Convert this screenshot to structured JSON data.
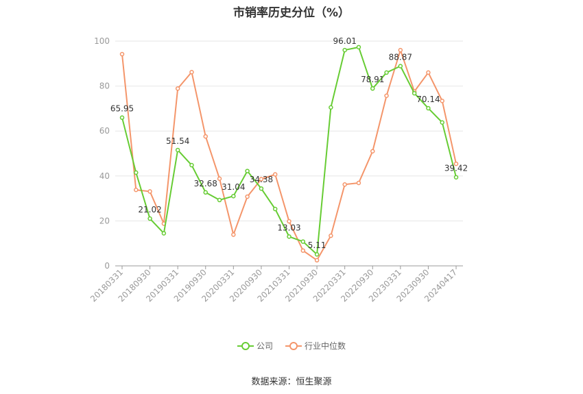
{
  "chart_data": {
    "type": "line",
    "title": "市销率历史分位（%）",
    "ylim": [
      0,
      100
    ],
    "yticks": [
      0,
      20,
      40,
      60,
      80,
      100
    ],
    "grid": true,
    "legend_position": "bottom-center",
    "x_tick_labels": [
      "20180331",
      "20180930",
      "20190331",
      "20190930",
      "20200331",
      "20200930",
      "20210331",
      "20210930",
      "20220331",
      "20220930",
      "20230331",
      "20230930",
      "20240417"
    ],
    "x": [
      "20180331",
      "20180630",
      "20180930",
      "20181231",
      "20190331",
      "20190630",
      "20190930",
      "20191231",
      "20200331",
      "20200630",
      "20200930",
      "20201231",
      "20210331",
      "20210630",
      "20210930",
      "20211231",
      "20220331",
      "20220630",
      "20220930",
      "20221231",
      "20230331",
      "20230630",
      "20230930",
      "20231231",
      "20240417"
    ],
    "series": [
      {
        "name": "公司",
        "color": "#66cc33",
        "values": [
          65.95,
          41.5,
          21.02,
          14.5,
          51.54,
          44.8,
          32.68,
          29.3,
          31.04,
          42.2,
          34.38,
          25.3,
          13.03,
          10.8,
          5.11,
          70.5,
          96.01,
          97.3,
          78.91,
          86.0,
          88.87,
          76.8,
          70.14,
          63.8,
          39.42
        ],
        "labels": {
          "0": "65.95",
          "2": "21.02",
          "4": "51.54",
          "6": "32.68",
          "8": "31.04",
          "10": "34.38",
          "12": "13.03",
          "14": "5.11",
          "16": "96.01",
          "18": "78.91",
          "20": "88.87",
          "22": "70.14",
          "24": "39.42"
        }
      },
      {
        "name": "行业中位数",
        "color": "#f4956a",
        "values": [
          94.2,
          33.8,
          33.1,
          18.8,
          78.9,
          86.2,
          57.6,
          38.8,
          13.9,
          30.8,
          38.6,
          40.7,
          19.8,
          6.8,
          2.5,
          13.4,
          36.2,
          36.9,
          51.0,
          75.7,
          96.0,
          77.6,
          86.0,
          73.4,
          45.4
        ]
      }
    ]
  },
  "source": "数据来源：恒生聚源"
}
